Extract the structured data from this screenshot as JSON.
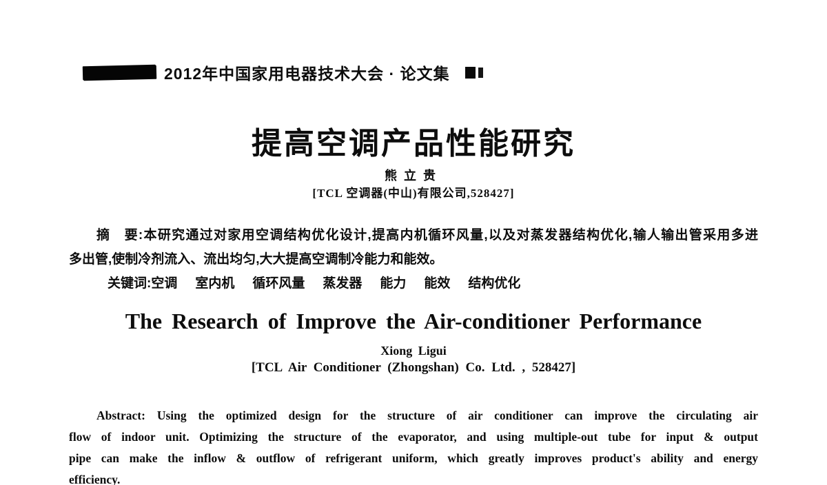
{
  "header": {
    "proceedings_title": "2012年中国家用电器技术大会 · 论文集"
  },
  "chinese": {
    "title": "提高空调产品性能研究",
    "author": "熊立贵",
    "affiliation": "[TCL 空调器(中山)有限公司,528427]",
    "abstract_lines": [
      "摘　要:本研究通过对家用空调结构优化设计,提高内机循环风量,以及对蒸发器结构优化,输人输出管采用多进",
      "多出管,使制冷剂流入、流出均匀,大大提高空调制冷能力和能效。"
    ],
    "keywords_label": "关键词:",
    "keywords": [
      "空调",
      "室内机",
      "循环风量",
      "蒸发器",
      "能力",
      "能效",
      "结构优化"
    ]
  },
  "english": {
    "title": "The Research of Improve the Air-conditioner Performance",
    "author": "Xiong Ligui",
    "affiliation": "[TCL Air Conditioner (Zhongshan) Co. Ltd. , 528427]",
    "abstract_lines": [
      "Abstract: Using the optimized design for the structure of air conditioner can improve the circulating air",
      "flow of indoor unit. Optimizing the structure of the evaporator, and using multiple-out tube for input & output",
      "pipe can make the inflow & outflow of refrigerant uniform, which greatly improves product's ability and energy",
      "efficiency."
    ]
  }
}
